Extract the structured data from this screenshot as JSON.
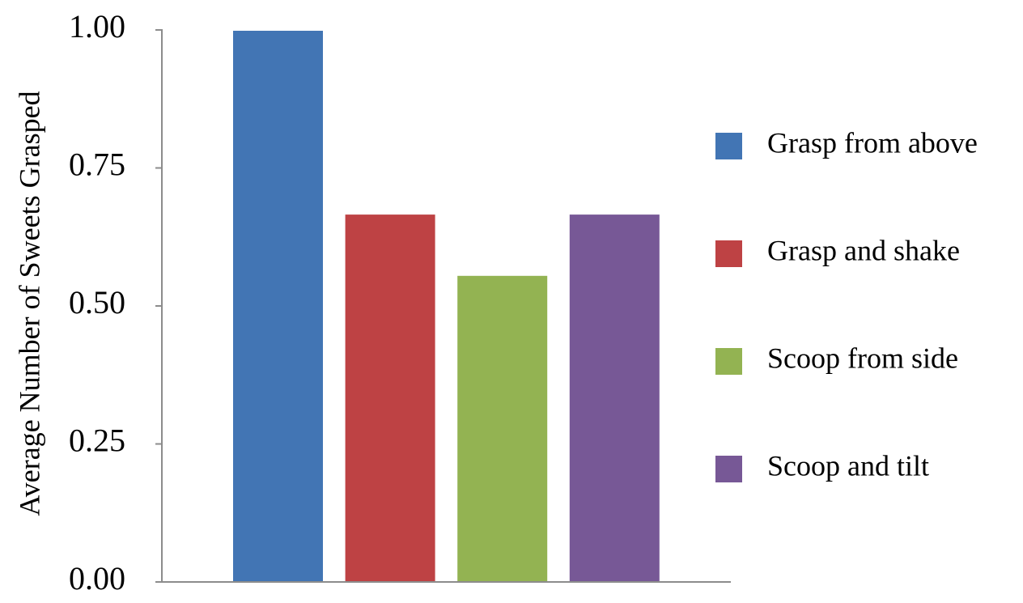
{
  "chart_data": {
    "type": "bar",
    "title": "",
    "xlabel": "",
    "ylabel": "Average Number of Sweets Grasped",
    "ylim": [
      0,
      1
    ],
    "yticks": [
      "0.00",
      "0.25",
      "0.50",
      "0.75",
      "1.00"
    ],
    "grid": false,
    "legend_position": "right",
    "series": [
      {
        "name": "Grasp from above",
        "value": 1.0,
        "color": "#4275B4"
      },
      {
        "name": "Grasp and shake",
        "value": 0.667,
        "color": "#BE4244"
      },
      {
        "name": "Scoop from side",
        "value": 0.556,
        "color": "#93B352"
      },
      {
        "name": "Scoop and tilt",
        "value": 0.667,
        "color": "#775896"
      }
    ]
  }
}
